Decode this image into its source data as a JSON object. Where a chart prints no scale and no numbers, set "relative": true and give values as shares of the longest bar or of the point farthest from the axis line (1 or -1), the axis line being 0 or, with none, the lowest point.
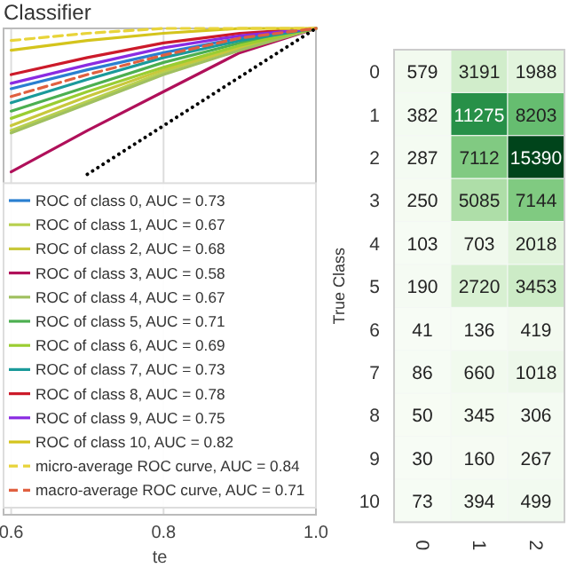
{
  "chart_data": [
    {
      "type": "line",
      "title": "Classifier",
      "xlabel": "te",
      "relative": true,
      "xlim": [
        0.59,
        1.0
      ],
      "xticks": [
        {
          "value": 0.6,
          "label": "0.6"
        },
        {
          "value": 0.8,
          "label": "0.8"
        },
        {
          "value": 1.0,
          "label": "1.0"
        }
      ],
      "tick_labels": "x",
      "grid": "x",
      "legend": "bottom right",
      "marker": "none",
      "x": [
        0.6,
        0.7,
        0.8,
        0.9,
        1.0
      ],
      "series": [
        {
          "name": "ROC of class 0, AUC = 0.73",
          "color": "#2a7fd0",
          "values": [
            0.876,
            0.915,
            0.95,
            0.98,
            1
          ]
        },
        {
          "name": "ROC of class 1, AUC = 0.67",
          "color": "#b8d050",
          "values": [
            0.79,
            0.85,
            0.91,
            0.96,
            1
          ]
        },
        {
          "name": "ROC of class 2, AUC = 0.68",
          "color": "#c8c83c",
          "values": [
            0.8,
            0.86,
            0.915,
            0.96,
            1
          ]
        },
        {
          "name": "ROC of class 3, AUC = 0.58",
          "color": "#b0105a",
          "values": [
            0.705,
            0.79,
            0.87,
            0.95,
            1
          ]
        },
        {
          "name": "ROC of class 4, AUC = 0.67",
          "color": "#a0c060",
          "values": [
            0.785,
            0.845,
            0.905,
            0.955,
            1
          ]
        },
        {
          "name": "ROC of class 5, AUC = 0.71",
          "color": "#4caf50",
          "values": [
            0.83,
            0.88,
            0.93,
            0.97,
            1
          ]
        },
        {
          "name": "ROC of class 6, AUC = 0.69",
          "color": "#9acd32",
          "values": [
            0.815,
            0.87,
            0.92,
            0.965,
            1
          ]
        },
        {
          "name": "ROC of class 7, AUC = 0.73",
          "color": "#1a9a9a",
          "values": [
            0.847,
            0.895,
            0.94,
            0.975,
            1
          ]
        },
        {
          "name": "ROC of class 8, AUC = 0.78",
          "color": "#cc1a2a",
          "values": [
            0.905,
            0.94,
            0.97,
            0.99,
            1
          ]
        },
        {
          "name": "ROC of class 9, AUC = 0.75",
          "color": "#8a2be2",
          "values": [
            0.887,
            0.925,
            0.96,
            0.985,
            1
          ]
        },
        {
          "name": "ROC of class 10, AUC = 0.82",
          "color": "#d4c41c",
          "values": [
            0.955,
            0.975,
            0.99,
            1,
            1
          ]
        },
        {
          "name": "micro-average ROC curve, AUC = 0.84",
          "color": "#e8d43a",
          "line_style": "dashed",
          "values": [
            0.975,
            0.99,
            1,
            1,
            1
          ]
        },
        {
          "name": "macro-average ROC curve, AUC = 0.71",
          "color": "#e06040",
          "line_style": "dashed",
          "values": [
            0.86,
            0.905,
            0.945,
            0.98,
            1
          ]
        },
        {
          "color": "#000000",
          "line_style": "dotted",
          "x": [
            0.7,
            1.0
          ],
          "values": [
            0.7,
            1.0
          ]
        }
      ]
    },
    {
      "type": "heatmap",
      "ylabel": "True Class",
      "categories": [
        "0",
        "1",
        "2"
      ],
      "y_categories": [
        "0",
        "1",
        "2",
        "3",
        "4",
        "5",
        "6",
        "7",
        "8",
        "9",
        "10"
      ],
      "data_labels": true,
      "cells": [
        [
          579,
          3191,
          1988
        ],
        [
          382,
          11275,
          8203
        ],
        [
          287,
          7112,
          15390
        ],
        [
          250,
          5085,
          7144
        ],
        [
          103,
          703,
          2018
        ],
        [
          190,
          2720,
          3453
        ],
        [
          41,
          136,
          419
        ],
        [
          86,
          660,
          1018
        ],
        [
          50,
          345,
          306
        ],
        [
          30,
          160,
          267
        ],
        [
          73,
          394,
          499
        ]
      ]
    }
  ]
}
